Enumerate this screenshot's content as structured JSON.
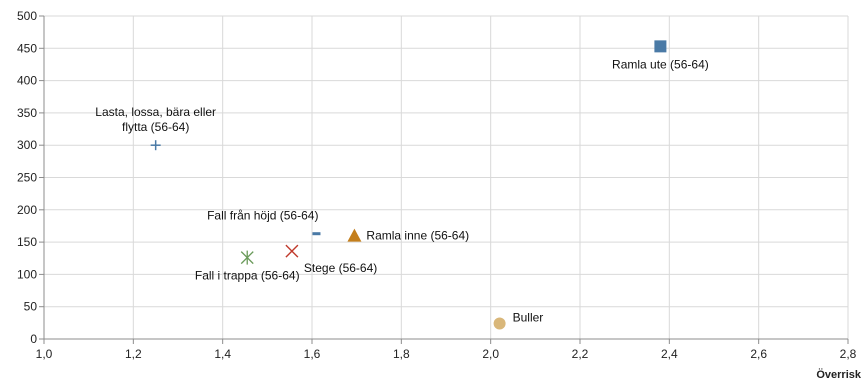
{
  "chart_data": {
    "type": "scatter",
    "xlabel": "Överrisk",
    "ylabel": "",
    "xlim": [
      1.0,
      2.8
    ],
    "ylim": [
      0,
      500
    ],
    "xticks": [
      "1,0",
      "1,2",
      "1,4",
      "1,6",
      "1,8",
      "2,0",
      "2,2",
      "2,4",
      "2,6",
      "2,8"
    ],
    "yticks": [
      "0",
      "50",
      "100",
      "150",
      "200",
      "250",
      "300",
      "350",
      "400",
      "450",
      "500"
    ],
    "grid": {
      "horizontal": true,
      "vertical": true
    },
    "points": [
      {
        "label": [
          "Ramla ute (56-64)"
        ],
        "x": 2.38,
        "y": 453,
        "marker": "square",
        "color": "#4a7aa6",
        "label_pos": "below"
      },
      {
        "label": [
          "Lasta, lossa, bära eller",
          "flytta (56-64)"
        ],
        "x": 1.25,
        "y": 300,
        "marker": "plus",
        "color": "#4a7aa6",
        "label_pos": "above"
      },
      {
        "label": [
          "Fall från höjd (56-64)"
        ],
        "x": 1.61,
        "y": 163,
        "marker": "dash",
        "color": "#4a7aa6",
        "label_pos": "above-left"
      },
      {
        "label": [
          "Ramla inne (56-64)"
        ],
        "x": 1.695,
        "y": 160,
        "marker": "triangle",
        "color": "#c47f1c",
        "label_pos": "right"
      },
      {
        "label": [
          "Stege (56-64)"
        ],
        "x": 1.555,
        "y": 136,
        "marker": "x",
        "color": "#c0392b",
        "label_pos": "below-right"
      },
      {
        "label": [
          "Fall i trappa (56-64)"
        ],
        "x": 1.455,
        "y": 126,
        "marker": "star",
        "color": "#6a9a5a",
        "label_pos": "below"
      },
      {
        "label": [
          "Buller"
        ],
        "x": 2.02,
        "y": 24,
        "marker": "circle",
        "color": "#d9b77a",
        "label_pos": "above-right"
      }
    ]
  }
}
